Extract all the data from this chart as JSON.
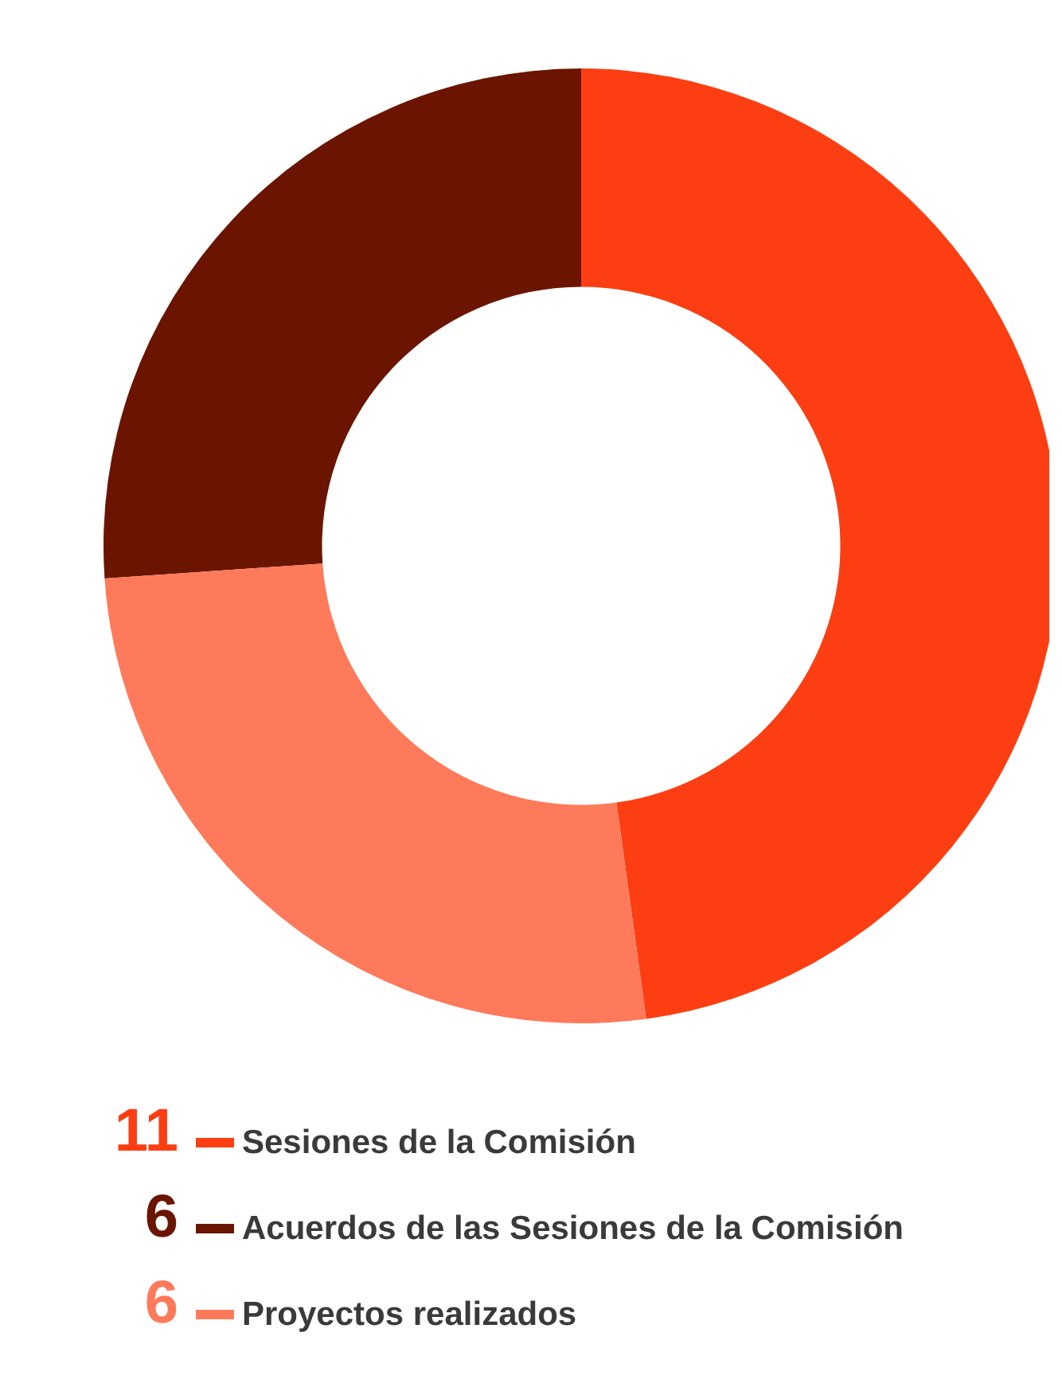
{
  "chart_data": {
    "type": "donut",
    "categories": [
      "Sesiones de la Comisión",
      "Acuerdos de las Sesiones de la Comisión",
      "Proyectos realizados"
    ],
    "values": [
      11,
      6,
      6
    ],
    "colors": [
      "#fc3e12",
      "#6b1500",
      "#ff7a5a"
    ],
    "legend": "bottom left",
    "data_labels": true
  }
}
